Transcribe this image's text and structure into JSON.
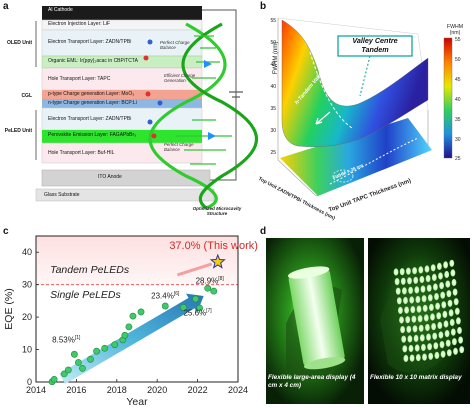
{
  "panel_a": {
    "label": "a",
    "layers": [
      "Al Cathode",
      "Electron Injection Layer: LiF",
      "Electron Transport Layer: ZADN/TPBi",
      "Organic EML: Ir(ppy)₂acac in CBP/TCTA",
      "Hole Transport Layer: TAPC",
      "p-type Charge generation Layer: MoO₃",
      "n-type Charge generation Layer: BCP:Li",
      "Electron Transport Layer: ZADN/TPBi",
      "Perovskite Emission Layer: FAGAPbBr₃",
      "Hole Transport Layer: Buf-HIL",
      "ITO Anode",
      "Glass Substrate"
    ],
    "unit_labels": [
      "OLED Unit",
      "CGL",
      "PeLED Unit"
    ],
    "notes": [
      "Perfect Charge Balance",
      "Efficient Charge Generation",
      "Perfect Charge Balance"
    ],
    "helix_caption": "Optimized Microcavity Structure"
  },
  "panel_b": {
    "label": "b",
    "callout": "Valley Centre Tandem",
    "valley_label": "h-Tandem Valley",
    "fwhm_label": "FWHM = 26 nm",
    "zlabel": "FWHM (nm)",
    "xlabel": "Top Unit TAPC Thickness (nm)",
    "ylabel": "Top Unit ZADN/TPBi Thickness (nm)",
    "colorbar_title": "FWHM\n(nm)",
    "colorbar_ticks": [
      "55",
      "50",
      "45",
      "40",
      "35",
      "30",
      "25"
    ],
    "z_ticks": [
      "55",
      "50",
      "45",
      "40",
      "35",
      "30",
      "25"
    ]
  },
  "panel_c": {
    "label": "c",
    "highlight": "37.0% (This work)",
    "tandem_label": "Tandem PeLEDs",
    "single_label": "Single PeLEDs",
    "ann1": "8.53%",
    "ann1_ref": "[1]",
    "ann2": "23.4%",
    "ann2_ref": "[6]",
    "ann3": "28.9%",
    "ann3_ref": "[8]",
    "ann4": "25.6%",
    "ann4_ref": "[7]",
    "chart_data": {
      "type": "scatter",
      "xlabel": "Year",
      "ylabel": "EQE (%)",
      "xlim": [
        2014,
        2024
      ],
      "ylim": [
        0,
        45
      ],
      "xticks": [
        2014,
        2016,
        2018,
        2020,
        2022,
        2024
      ],
      "yticks": [
        0,
        10,
        20,
        30,
        40
      ],
      "points": [
        [
          2014.8,
          0.1
        ],
        [
          2014.9,
          0.8
        ],
        [
          2015.4,
          2.5
        ],
        [
          2015.6,
          3.7
        ],
        [
          2015.9,
          8.53
        ],
        [
          2016.1,
          6.0
        ],
        [
          2016.3,
          4.2
        ],
        [
          2016.7,
          7.0
        ],
        [
          2017.0,
          9.5
        ],
        [
          2017.4,
          10.4
        ],
        [
          2017.9,
          11.5
        ],
        [
          2018.3,
          13.0
        ],
        [
          2018.4,
          14.4
        ],
        [
          2018.6,
          17.0
        ],
        [
          2018.8,
          20.3
        ],
        [
          2019.2,
          21.6
        ],
        [
          2020.4,
          23.4
        ],
        [
          2021.3,
          23.0
        ],
        [
          2021.9,
          25.6
        ],
        [
          2022.1,
          22.8
        ],
        [
          2022.5,
          28.9
        ],
        [
          2022.8,
          28.0
        ]
      ],
      "this_work": [
        2023.0,
        37.0
      ],
      "tandem_threshold": 30
    }
  },
  "panel_d": {
    "label": "d",
    "caption_left": "Flexible large-area display (4 cm x 4 cm)",
    "caption_right": "Flexible 10 x 10 matrix display"
  }
}
